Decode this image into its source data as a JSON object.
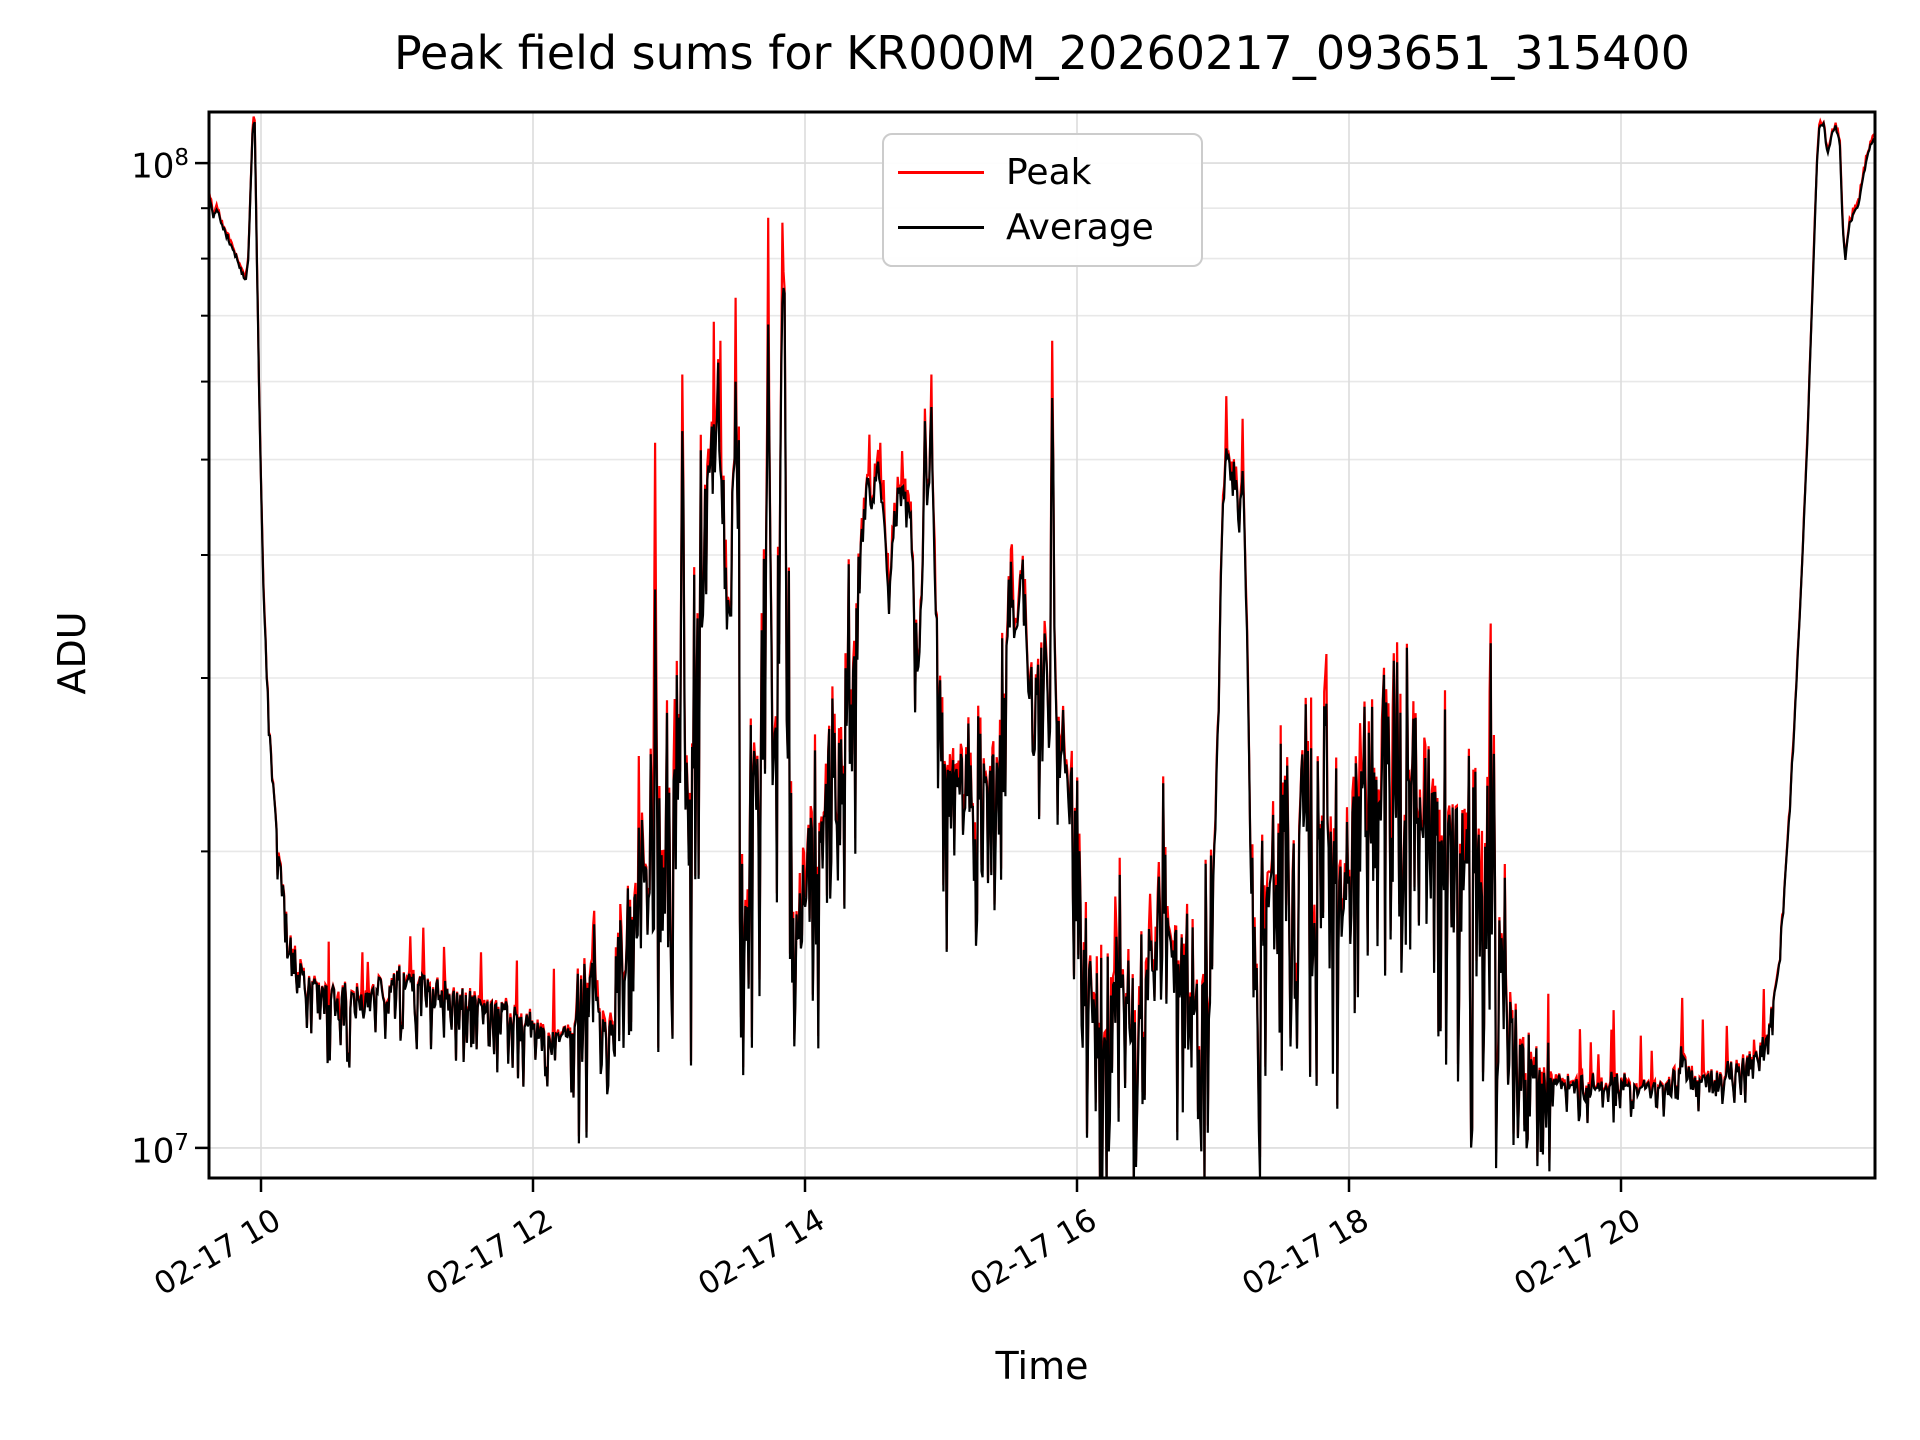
{
  "chart_data": {
    "type": "line",
    "title": "Peak field sums for KR000M_20260217_093651_315400",
    "xlabel": "Time",
    "ylabel": "ADU",
    "grid": true,
    "legend_position": "upper center",
    "xlim_hours": [
      9.618,
      21.868
    ],
    "ylim": [
      9320000.0,
      112700000.0
    ],
    "x_ticks": [
      {
        "hour": 10,
        "label": "02-17 10"
      },
      {
        "hour": 12,
        "label": "02-17 12"
      },
      {
        "hour": 14,
        "label": "02-17 14"
      },
      {
        "hour": 16,
        "label": "02-17 16"
      },
      {
        "hour": 18,
        "label": "02-17 18"
      },
      {
        "hour": 20,
        "label": "02-17 20"
      }
    ],
    "y_ticks_major": [
      {
        "value": 10000000.0,
        "mantissa": "10",
        "exponent": "7"
      },
      {
        "value": 100000000.0,
        "mantissa": "10",
        "exponent": "8"
      }
    ],
    "y_ticks_minor": [
      20000000.0,
      30000000.0,
      40000000.0,
      50000000.0,
      60000000.0,
      70000000.0,
      80000000.0,
      90000000.0
    ],
    "series": [
      {
        "name": "Peak",
        "color": "#ff0000"
      },
      {
        "name": "Average",
        "color": "#000000"
      }
    ],
    "seed": 42,
    "sample_step_hours": 0.008,
    "average_keypoints": [
      [
        9.618,
        93000000.0
      ],
      [
        9.65,
        88000000.0
      ],
      [
        9.68,
        90000000.0
      ],
      [
        9.72,
        86000000.0
      ],
      [
        9.76,
        84000000.0
      ],
      [
        9.8,
        81500000.0
      ],
      [
        9.84,
        79000000.0
      ],
      [
        9.88,
        76000000.0
      ],
      [
        9.905,
        79000000.0
      ],
      [
        9.925,
        95000000.0
      ],
      [
        9.94,
        109000000.0
      ],
      [
        9.955,
        110000000.0
      ],
      [
        9.97,
        80000000.0
      ],
      [
        9.99,
        55000000.0
      ],
      [
        10.02,
        36000000.0
      ],
      [
        10.06,
        27000000.0
      ],
      [
        10.12,
        20500000.0
      ],
      [
        10.2,
        16700000.0
      ],
      [
        10.3,
        15200000.0
      ],
      [
        10.4,
        14700000.0
      ],
      [
        10.55,
        14400000.0
      ],
      [
        10.75,
        14300000.0
      ],
      [
        10.95,
        14600000.0
      ],
      [
        11.05,
        15200000.0
      ],
      [
        11.12,
        14900000.0
      ],
      [
        11.25,
        14500000.0
      ],
      [
        11.45,
        14400000.0
      ],
      [
        11.65,
        14100000.0
      ],
      [
        11.85,
        13700000.0
      ],
      [
        12.05,
        13300000.0
      ],
      [
        12.2,
        13000000.0
      ],
      [
        12.3,
        13200000.0
      ],
      [
        12.38,
        14200000.0
      ],
      [
        12.44,
        15200000.0
      ],
      [
        12.5,
        13500000.0
      ],
      [
        12.56,
        12500000.0
      ],
      [
        12.62,
        14500000.0
      ],
      [
        12.7,
        17000000.0
      ],
      [
        12.78,
        21000000.0
      ],
      [
        12.84,
        19000000.0
      ],
      [
        12.89,
        21000000.0
      ],
      [
        12.9,
        37000000.0
      ],
      [
        12.915,
        20000000.0
      ],
      [
        12.96,
        19000000.0
      ],
      [
        13.02,
        23000000.0
      ],
      [
        13.08,
        26000000.0
      ],
      [
        13.1,
        58000000.0
      ],
      [
        13.12,
        26000000.0
      ],
      [
        13.16,
        22000000.0
      ],
      [
        13.2,
        28000000.0
      ],
      [
        13.24,
        34000000.0
      ],
      [
        13.28,
        46000000.0
      ],
      [
        13.32,
        54000000.0
      ],
      [
        13.36,
        56000000.0
      ],
      [
        13.4,
        48000000.0
      ],
      [
        13.44,
        34000000.0
      ],
      [
        13.47,
        42000000.0
      ],
      [
        13.49,
        64000000.0
      ],
      [
        13.51,
        38000000.0
      ],
      [
        13.54,
        19000000.0
      ],
      [
        13.58,
        17000000.0
      ],
      [
        13.62,
        26000000.0
      ],
      [
        13.66,
        21000000.0
      ],
      [
        13.7,
        26000000.0
      ],
      [
        13.73,
        67000000.0
      ],
      [
        13.755,
        31000000.0
      ],
      [
        13.78,
        26000000.0
      ],
      [
        13.81,
        36000000.0
      ],
      [
        13.835,
        83000000.0
      ],
      [
        13.85,
        76000000.0
      ],
      [
        13.865,
        34000000.0
      ],
      [
        13.89,
        22000000.0
      ],
      [
        13.93,
        17500000.0
      ],
      [
        13.97,
        15500000.0
      ],
      [
        14.02,
        18000000.0
      ],
      [
        14.07,
        23000000.0
      ],
      [
        14.12,
        20000000.0
      ],
      [
        14.17,
        25000000.0
      ],
      [
        14.22,
        22000000.0
      ],
      [
        14.28,
        26000000.0
      ],
      [
        14.33,
        29000000.0
      ],
      [
        14.38,
        33000000.0
      ],
      [
        14.42,
        43000000.0
      ],
      [
        14.46,
        48000000.0
      ],
      [
        14.5,
        46000000.0
      ],
      [
        14.54,
        49000000.0
      ],
      [
        14.58,
        44000000.0
      ],
      [
        14.62,
        36000000.0
      ],
      [
        14.66,
        44000000.0
      ],
      [
        14.7,
        47000000.0
      ],
      [
        14.74,
        46000000.0
      ],
      [
        14.78,
        44000000.0
      ],
      [
        14.82,
        32000000.0
      ],
      [
        14.86,
        36000000.0
      ],
      [
        14.88,
        56000000.0
      ],
      [
        14.9,
        44000000.0
      ],
      [
        14.93,
        59000000.0
      ],
      [
        14.96,
        36000000.0
      ],
      [
        15.0,
        25000000.0
      ],
      [
        15.05,
        23000000.0
      ],
      [
        15.1,
        24000000.0
      ],
      [
        15.2,
        22000000.0
      ],
      [
        15.3,
        23000000.0
      ],
      [
        15.4,
        24000000.0
      ],
      [
        15.47,
        29000000.0
      ],
      [
        15.52,
        38000000.0
      ],
      [
        15.56,
        34000000.0
      ],
      [
        15.6,
        39000000.0
      ],
      [
        15.64,
        32000000.0
      ],
      [
        15.68,
        29000000.0
      ],
      [
        15.72,
        31000000.0
      ],
      [
        15.76,
        32000000.0
      ],
      [
        15.8,
        31000000.0
      ],
      [
        15.82,
        63000000.0
      ],
      [
        15.84,
        30000000.0
      ],
      [
        15.88,
        26000000.0
      ],
      [
        15.93,
        23000000.0
      ],
      [
        16.0,
        20000000.0
      ],
      [
        16.05,
        16000000.0
      ],
      [
        16.1,
        15000000.0
      ],
      [
        16.15,
        13000000.0
      ],
      [
        16.2,
        12500000.0
      ],
      [
        16.28,
        15000000.0
      ],
      [
        16.35,
        14500000.0
      ],
      [
        16.42,
        13000000.0
      ],
      [
        16.5,
        15000000.0
      ],
      [
        16.58,
        17000000.0
      ],
      [
        16.65,
        17500000.0
      ],
      [
        16.72,
        16000000.0
      ],
      [
        16.8,
        13500000.0
      ],
      [
        16.88,
        13500000.0
      ],
      [
        16.95,
        15000000.0
      ],
      [
        17.0,
        18000000.0
      ],
      [
        17.04,
        28000000.0
      ],
      [
        17.07,
        46000000.0
      ],
      [
        17.1,
        52000000.0
      ],
      [
        17.13,
        48000000.0
      ],
      [
        17.16,
        50000000.0
      ],
      [
        17.19,
        44000000.0
      ],
      [
        17.22,
        49000000.0
      ],
      [
        17.25,
        34000000.0
      ],
      [
        17.28,
        19000000.0
      ],
      [
        17.31,
        15000000.0
      ],
      [
        17.36,
        16000000.0
      ],
      [
        17.42,
        19000000.0
      ],
      [
        17.48,
        18000000.0
      ],
      [
        17.54,
        21000000.0
      ],
      [
        17.6,
        19000000.0
      ],
      [
        17.66,
        22000000.0
      ],
      [
        17.72,
        19000000.0
      ],
      [
        17.78,
        21000000.0
      ],
      [
        17.84,
        23000000.0
      ],
      [
        17.9,
        20000000.0
      ],
      [
        17.96,
        17000000.0
      ],
      [
        18.02,
        21000000.0
      ],
      [
        18.08,
        24000000.0
      ],
      [
        18.14,
        21000000.0
      ],
      [
        18.2,
        24000000.0
      ],
      [
        18.26,
        22000000.0
      ],
      [
        18.32,
        25000000.0
      ],
      [
        18.38,
        21000000.0
      ],
      [
        18.44,
        24000000.0
      ],
      [
        18.5,
        22000000.0
      ],
      [
        18.56,
        24000000.0
      ],
      [
        18.62,
        21000000.0
      ],
      [
        18.68,
        19000000.0
      ],
      [
        18.74,
        21000000.0
      ],
      [
        18.8,
        18000000.0
      ],
      [
        18.86,
        19000000.0
      ],
      [
        18.92,
        17000000.0
      ],
      [
        18.98,
        18000000.0
      ],
      [
        19.03,
        26000000.0
      ],
      [
        19.08,
        17000000.0
      ],
      [
        19.14,
        15000000.0
      ],
      [
        19.2,
        13500000.0
      ],
      [
        19.28,
        12500000.0
      ],
      [
        19.36,
        12200000.0
      ],
      [
        19.45,
        11800000.0
      ],
      [
        19.6,
        11600000.0
      ],
      [
        19.8,
        11500000.0
      ],
      [
        20.0,
        11600000.0
      ],
      [
        20.2,
        11500000.0
      ],
      [
        20.35,
        11600000.0
      ],
      [
        20.45,
        12400000.0
      ],
      [
        20.52,
        11700000.0
      ],
      [
        20.7,
        11700000.0
      ],
      [
        20.9,
        12000000.0
      ],
      [
        21.0,
        12500000.0
      ],
      [
        21.1,
        13500000.0
      ],
      [
        21.17,
        15500000.0
      ],
      [
        21.22,
        20000000.0
      ],
      [
        21.27,
        26000000.0
      ],
      [
        21.32,
        36000000.0
      ],
      [
        21.37,
        52000000.0
      ],
      [
        21.41,
        75000000.0
      ],
      [
        21.44,
        100000000.0
      ],
      [
        21.46,
        109000000.0
      ],
      [
        21.49,
        110000000.0
      ],
      [
        21.52,
        102000000.0
      ],
      [
        21.55,
        107000000.0
      ],
      [
        21.58,
        109000000.0
      ],
      [
        21.61,
        105000000.0
      ],
      [
        21.63,
        86000000.0
      ],
      [
        21.65,
        80000000.0
      ],
      [
        21.68,
        87000000.0
      ],
      [
        21.71,
        89000000.0
      ],
      [
        21.74,
        90000000.0
      ],
      [
        21.77,
        95000000.0
      ],
      [
        21.8,
        100000000.0
      ],
      [
        21.83,
        104000000.0
      ],
      [
        21.868,
        106000000.0
      ]
    ],
    "peak_extra_spikes": [
      [
        9.945,
        111500000.0
      ],
      [
        10.5,
        16200000.0
      ],
      [
        10.75,
        15800000.0
      ],
      [
        11.1,
        16400000.0
      ],
      [
        11.35,
        16000000.0
      ],
      [
        11.62,
        15800000.0
      ],
      [
        11.88,
        15500000.0
      ],
      [
        12.15,
        15200000.0
      ],
      [
        12.44,
        16800000.0
      ],
      [
        12.78,
        25000000.0
      ],
      [
        12.9,
        52000000.0
      ],
      [
        13.1,
        61000000.0
      ],
      [
        13.33,
        69000000.0
      ],
      [
        13.38,
        66000000.0
      ],
      [
        13.49,
        73000000.0
      ],
      [
        13.73,
        88000000.0
      ],
      [
        13.835,
        87000000.0
      ],
      [
        14.47,
        53000000.0
      ],
      [
        14.55,
        52000000.0
      ],
      [
        14.71,
        51000000.0
      ],
      [
        14.93,
        61000000.0
      ],
      [
        15.52,
        41000000.0
      ],
      [
        15.82,
        66000000.0
      ],
      [
        16.28,
        18000000.0
      ],
      [
        16.65,
        20000000.0
      ],
      [
        17.1,
        58000000.0
      ],
      [
        17.22,
        55000000.0
      ],
      [
        18.08,
        27000000.0
      ],
      [
        18.32,
        28000000.0
      ],
      [
        19.03,
        29000000.0
      ],
      [
        19.7,
        13200000.0
      ],
      [
        19.95,
        13800000.0
      ],
      [
        20.15,
        13000000.0
      ],
      [
        20.45,
        14200000.0
      ],
      [
        20.6,
        13500000.0
      ],
      [
        20.78,
        13300000.0
      ],
      [
        21.05,
        14500000.0
      ]
    ],
    "noise_regions": [
      [
        9.618,
        10.05,
        0.004,
        0.008,
        0.008,
        0.0,
        0.0
      ],
      [
        10.05,
        10.3,
        0.006,
        0.02,
        0.006,
        0.01,
        0.03
      ],
      [
        10.3,
        12.32,
        0.006,
        0.035,
        0.005,
        0.012,
        0.05
      ],
      [
        12.32,
        12.86,
        0.03,
        0.07,
        0.02,
        0.03,
        0.06
      ],
      [
        12.86,
        13.96,
        0.09,
        0.13,
        0.025,
        0.04,
        0.06
      ],
      [
        13.96,
        14.4,
        0.07,
        0.11,
        0.025,
        0.04,
        0.05
      ],
      [
        14.4,
        14.97,
        0.022,
        0.05,
        0.02,
        0.03,
        0.04
      ],
      [
        14.97,
        15.44,
        0.045,
        0.09,
        0.022,
        0.03,
        0.05
      ],
      [
        15.44,
        15.99,
        0.045,
        0.08,
        0.022,
        0.03,
        0.05
      ],
      [
        15.99,
        17.02,
        0.06,
        0.1,
        0.025,
        0.04,
        0.06
      ],
      [
        17.02,
        17.28,
        0.018,
        0.05,
        0.02,
        0.02,
        0.04
      ],
      [
        17.28,
        19.15,
        0.07,
        0.12,
        0.025,
        0.05,
        0.06
      ],
      [
        19.15,
        19.5,
        0.025,
        0.06,
        0.015,
        0.03,
        0.05
      ],
      [
        19.5,
        20.95,
        0.007,
        0.018,
        0.006,
        0.02,
        0.055
      ],
      [
        20.95,
        21.2,
        0.008,
        0.015,
        0.006,
        0.02,
        0.03
      ],
      [
        21.2,
        21.868,
        0.0025,
        0.006,
        0.008,
        0.0,
        0.0
      ]
    ]
  }
}
